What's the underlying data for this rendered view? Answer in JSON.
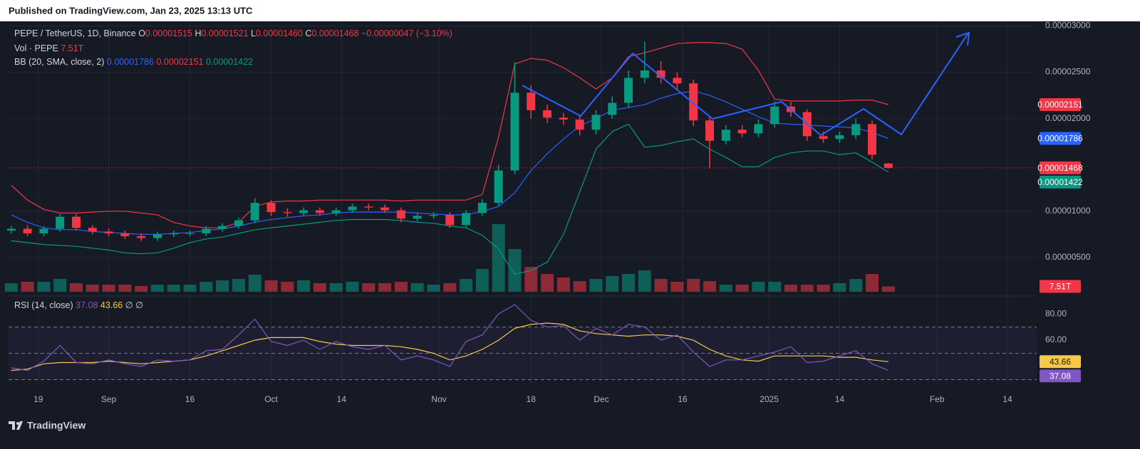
{
  "header": {
    "published": "Published on TradingView.com, Jan 23, 2025 13:13 UTC"
  },
  "legend": {
    "symbol": "PEPE / TetherUS, 1D, Binance",
    "o_label": "O",
    "o": "0.00001515",
    "h_label": "H",
    "h": "0.00001521",
    "l_label": "L",
    "l": "0.00001460",
    "c_label": "C",
    "c": "0.00001468",
    "change": "−0.00000047 (−3.10%)",
    "vol_label": "Vol · PEPE",
    "vol": "7.51T",
    "bb_label": "BB (20, SMA, close, 2)",
    "bb_middle": "0.00001786",
    "bb_upper": "0.00002151",
    "bb_lower": "0.00001422",
    "rsi_label": "RSI (14, close)",
    "rsi": "37.08",
    "rsi_ma": "43.66",
    "rsi_extra1": "∅",
    "rsi_extra2": "∅"
  },
  "badges": [
    {
      "text": "0.00002151",
      "color": "#f23645"
    },
    {
      "text": "0.00001786",
      "color": "#2962ff"
    },
    {
      "text": "0.00001468",
      "color": "#f23645"
    },
    {
      "text": "0.00001422",
      "color": "#089981"
    },
    {
      "text": "7.51T",
      "color": "#f23645"
    },
    {
      "text": "43.66",
      "color": "#f7c948"
    },
    {
      "text": "37.08",
      "color": "#7e57c2"
    }
  ],
  "footer": {
    "brand": "TradingView"
  },
  "chart_data": [
    {
      "type": "candlestick",
      "x": [
        13,
        16,
        19,
        22,
        25,
        28,
        31,
        34,
        37,
        40,
        43,
        46,
        49,
        52,
        55,
        58,
        61,
        64,
        67,
        70,
        73,
        76,
        79,
        82,
        85,
        88,
        91,
        94,
        97,
        100,
        103,
        106,
        109,
        112,
        115,
        118,
        121,
        124,
        127,
        130,
        133,
        136,
        139,
        142,
        145,
        148,
        151,
        154,
        157,
        160,
        163,
        166,
        169,
        172,
        175
      ],
      "open": [
        7.9e-06,
        8.1e-06,
        7.6e-06,
        8.1e-06,
        9.4e-06,
        8.2e-06,
        7.8e-06,
        7.6e-06,
        7.3e-06,
        7.1e-06,
        7.5e-06,
        7.6e-06,
        7.6e-06,
        8.1e-06,
        8.4e-06,
        9e-06,
        1.09e-05,
        9.9e-06,
        9.8e-06,
        1.01e-05,
        9.8e-06,
        1.01e-05,
        1.05e-05,
        1.04e-05,
        1.01e-05,
        9.2e-06,
        9.5e-06,
        9.6e-06,
        8.5e-06,
        9.8e-06,
        1.09e-05,
        1.44e-05,
        2.28e-05,
        2.09e-05,
        2.01e-05,
        1.99e-05,
        1.88e-05,
        2.04e-05,
        2.17e-05,
        2.44e-05,
        2.52e-05,
        2.44e-05,
        2.38e-05,
        1.98e-05,
        1.76e-05,
        1.88e-05,
        1.84e-05,
        1.94e-05,
        2.13e-05,
        2.07e-05,
        1.81e-05,
        1.78e-05,
        1.82e-05,
        1.94e-05,
        1.515e-05
      ],
      "high": [
        8.4e-06,
        8.5e-06,
        8.4e-06,
        9.7e-06,
        9.7e-06,
        8.5e-06,
        8.1e-06,
        7.9e-06,
        7.6e-06,
        7.8e-06,
        7.9e-06,
        7.9e-06,
        8.4e-06,
        8.7e-06,
        9.3e-06,
        1.14e-05,
        1.12e-05,
        1.03e-05,
        1.04e-05,
        1.04e-05,
        1.04e-05,
        1.08e-05,
        1.08e-05,
        1.07e-05,
        1.04e-05,
        9.8e-06,
        9.9e-06,
        9.9e-06,
        1.01e-05,
        1.13e-05,
        1.5e-05,
        2.61e-05,
        2.36e-05,
        2.15e-05,
        2.06e-05,
        2.04e-05,
        2.09e-05,
        2.24e-05,
        2.52e-05,
        2.83e-05,
        2.62e-05,
        2.5e-05,
        2.42e-05,
        2.03e-05,
        1.93e-05,
        1.93e-05,
        1.99e-05,
        2.19e-05,
        2.18e-05,
        2.1e-05,
        1.86e-05,
        1.86e-05,
        2e-05,
        1.98e-05,
        1.521e-05
      ],
      "low": [
        7.6e-06,
        7.3e-06,
        7.3e-06,
        7.8e-06,
        7.9e-06,
        7.5e-06,
        7.3e-06,
        7e-06,
        6.8e-06,
        6.8e-06,
        7.2e-06,
        7.3e-06,
        7.3e-06,
        7.8e-06,
        8.1e-06,
        8.7e-06,
        9.5e-06,
        9.4e-06,
        9.5e-06,
        9.5e-06,
        9.5e-06,
        9.8e-06,
        1.01e-05,
        9.8e-06,
        8.8e-06,
        8.9e-06,
        9.2e-06,
        8.2e-06,
        8.2e-06,
        9.5e-06,
        1.06e-05,
        1.4e-05,
        2e-05,
        1.95e-05,
        1.93e-05,
        1.82e-05,
        1.83e-05,
        2e-05,
        2.12e-05,
        2.38e-05,
        2.38e-05,
        2.32e-05,
        1.92e-05,
        1.46e-05,
        1.72e-05,
        1.8e-05,
        1.8e-05,
        1.9e-05,
        2.02e-05,
        1.76e-05,
        1.74e-05,
        1.74e-05,
        1.78e-05,
        1.56e-05,
        1.46e-05
      ],
      "close": [
        8.1e-06,
        7.6e-06,
        8.1e-06,
        9.4e-06,
        8.2e-06,
        7.8e-06,
        7.6e-06,
        7.3e-06,
        7.1e-06,
        7.5e-06,
        7.6e-06,
        7.6e-06,
        8.1e-06,
        8.4e-06,
        9e-06,
        1.09e-05,
        9.9e-06,
        9.8e-06,
        1.01e-05,
        9.8e-06,
        1.01e-05,
        1.05e-05,
        1.04e-05,
        1.01e-05,
        9.2e-06,
        9.5e-06,
        9.6e-06,
        8.5e-06,
        9.8e-06,
        1.09e-05,
        1.44e-05,
        2.28e-05,
        2.09e-05,
        2.01e-05,
        1.99e-05,
        1.88e-05,
        2.04e-05,
        2.17e-05,
        2.44e-05,
        2.52e-05,
        2.44e-05,
        2.38e-05,
        1.98e-05,
        1.76e-05,
        1.88e-05,
        1.84e-05,
        1.94e-05,
        2.13e-05,
        2.07e-05,
        1.81e-05,
        1.78e-05,
        1.82e-05,
        1.94e-05,
        1.61e-05,
        1.468e-05
      ],
      "up_color": "#089981",
      "down_color": "#f23645",
      "bands": {
        "upper": {
          "color": "#f23645",
          "values": [
            1.28e-05,
            1.12e-05,
            1.02e-05,
            9.8e-06,
            9.8e-06,
            9.9e-06,
            1e-05,
            1e-05,
            9.8e-06,
            9.6e-06,
            8.8e-06,
            8.4e-06,
            8.2e-06,
            8.2e-06,
            8.8e-06,
            1.05e-05,
            1.1e-05,
            1.11e-05,
            1.11e-05,
            1.12e-05,
            1.12e-05,
            1.12e-05,
            1.12e-05,
            1.12e-05,
            1.11e-05,
            1.12e-05,
            1.12e-05,
            1.12e-05,
            1.12e-05,
            1.18e-05,
            1.8e-05,
            2.59e-05,
            2.65e-05,
            2.63e-05,
            2.55e-05,
            2.44e-05,
            2.32e-05,
            2.44e-05,
            2.67e-05,
            2.71e-05,
            2.76e-05,
            2.81e-05,
            2.82e-05,
            2.82e-05,
            2.81e-05,
            2.75e-05,
            2.52e-05,
            2.21e-05,
            2.19e-05,
            2.19e-05,
            2.19e-05,
            2.19e-05,
            2.2e-05,
            2.2e-05,
            2.151e-05
          ]
        },
        "middle": {
          "color": "#2962ff",
          "values": [
            9.6e-06,
            8.8e-06,
            8.2e-06,
            8e-06,
            8e-06,
            7.8e-06,
            7.7e-06,
            7.6e-06,
            7.5e-06,
            7.5e-06,
            7.6e-06,
            7.7e-06,
            7.9e-06,
            8.1e-06,
            8.4e-06,
            8.8e-06,
            9.1e-06,
            9.3e-06,
            9.5e-06,
            9.6e-06,
            9.8e-06,
            9.9e-06,
            9.9e-06,
            9.9e-06,
            9.9e-06,
            9.8e-06,
            9.7e-06,
            9.6e-06,
            9.6e-06,
            1e-05,
            1.05e-05,
            1.2e-05,
            1.44e-05,
            1.62e-05,
            1.78e-05,
            1.92e-05,
            2e-05,
            2.09e-05,
            2.12e-05,
            2.15e-05,
            2.22e-05,
            2.27e-05,
            2.3e-05,
            2.25e-05,
            2.18e-05,
            2.1e-05,
            2.02e-05,
            1.95e-05,
            1.94e-05,
            1.93e-05,
            1.92e-05,
            1.91e-05,
            1.9e-05,
            1.85e-05,
            1.786e-05
          ]
        },
        "lower": {
          "color": "#089981",
          "values": [
            6.8e-06,
            6.6e-06,
            6.4e-06,
            6.3e-06,
            6.2e-06,
            6e-06,
            5.8e-06,
            5.5e-06,
            5.4e-06,
            5.5e-06,
            6e-06,
            6.6e-06,
            7e-06,
            7.2e-06,
            7.6e-06,
            8e-06,
            8.2e-06,
            8.4e-06,
            8.6e-06,
            8.8e-06,
            9e-06,
            9.1e-06,
            9.1e-06,
            9.1e-06,
            9e-06,
            8.8e-06,
            8.7e-06,
            8.4e-06,
            8.2e-06,
            7.4e-06,
            5.9e-06,
            3.2e-06,
            3.6e-06,
            4.5e-06,
            7.5e-06,
            1.21e-05,
            1.67e-05,
            1.86e-05,
            1.94e-05,
            1.69e-05,
            1.71e-05,
            1.75e-05,
            1.78e-05,
            1.67e-05,
            1.58e-05,
            1.48e-05,
            1.48e-05,
            1.58e-05,
            1.63e-05,
            1.65e-05,
            1.65e-05,
            1.61e-05,
            1.63e-05,
            1.53e-05,
            1.422e-05
          ]
        }
      },
      "volume": {
        "values": [
          12,
          14,
          14,
          18,
          12,
          10,
          10,
          10,
          8,
          10,
          10,
          10,
          14,
          16,
          18,
          24,
          16,
          14,
          16,
          12,
          12,
          14,
          12,
          12,
          14,
          12,
          10,
          12,
          18,
          32,
          95,
          60,
          35,
          25,
          20,
          15,
          18,
          22,
          25,
          30,
          18,
          14,
          18,
          15,
          10,
          10,
          14,
          14,
          10,
          10,
          10,
          12,
          18,
          25,
          7.51
        ],
        "ylim": [
          0,
          380
        ],
        "up_color": "#089981",
        "down_color": "#f23645"
      },
      "xlim": [
        12.5,
        202.4
      ],
      "xticks": [
        {
          "value": 18,
          "label": "19"
        },
        {
          "value": 31,
          "label": "Sep"
        },
        {
          "value": 46,
          "label": "16"
        },
        {
          "value": 61,
          "label": "Oct"
        },
        {
          "value": 74,
          "label": "14"
        },
        {
          "value": 92,
          "label": "Nov"
        },
        {
          "value": 109,
          "label": "18"
        },
        {
          "value": 122,
          "label": "Dec"
        },
        {
          "value": 137,
          "label": "16"
        },
        {
          "value": 153,
          "label": "2025"
        },
        {
          "value": 166,
          "label": "14"
        },
        {
          "value": 184,
          "label": "Feb"
        },
        {
          "value": 197,
          "label": "14"
        }
      ],
      "ylim": [
        1.3e-06,
        3.05e-05
      ],
      "yticks": [
        {
          "value": 3e-05,
          "label": "0.00003000"
        },
        {
          "value": 2.5e-05,
          "label": "0.00002500"
        },
        {
          "value": 2e-05,
          "label": "0.00002000"
        },
        {
          "value": 1e-05,
          "label": "0.00001000"
        },
        {
          "value": 5e-06,
          "label": "0.00000500"
        }
      ],
      "grid": true
    },
    {
      "type": "line",
      "x": [
        13,
        16,
        19,
        22,
        25,
        28,
        31,
        34,
        37,
        40,
        43,
        46,
        49,
        52,
        55,
        58,
        61,
        64,
        67,
        70,
        73,
        76,
        79,
        82,
        85,
        88,
        91,
        94,
        97,
        100,
        103,
        106,
        109,
        112,
        115,
        118,
        121,
        124,
        127,
        130,
        133,
        136,
        139,
        142,
        145,
        148,
        151,
        154,
        157,
        160,
        163,
        166,
        169,
        172,
        175
      ],
      "series": [
        {
          "color": "#7e57c2",
          "values": [
            39,
            37,
            44,
            56,
            43,
            42,
            45,
            42,
            40,
            45,
            44,
            45,
            52,
            53,
            64,
            76,
            59,
            56,
            60,
            53,
            59,
            55,
            53,
            56,
            45,
            48,
            45,
            40,
            59,
            64,
            80,
            87,
            75,
            70,
            71,
            60,
            69,
            64,
            72,
            70,
            60,
            64,
            51,
            40,
            45,
            45,
            48,
            51,
            55,
            43,
            44,
            48,
            52,
            42,
            37.08
          ]
        },
        {
          "color": "#f7c948",
          "values": [
            37,
            38,
            42,
            43,
            43,
            43,
            44,
            43,
            42,
            43,
            44,
            45,
            48,
            52,
            56,
            60,
            62,
            62,
            62,
            59,
            57,
            56,
            56,
            56,
            55,
            53,
            50,
            45,
            48,
            53,
            60,
            69,
            72,
            73,
            72,
            67,
            65,
            64,
            63,
            64,
            64,
            63,
            60,
            53,
            48,
            45,
            44,
            48,
            48,
            48,
            48,
            47,
            47,
            45,
            43.66
          ]
        }
      ],
      "ylim": [
        26.5,
        91.4
      ],
      "yticks": [
        {
          "value": 80,
          "label": "80.00"
        },
        {
          "value": 60,
          "label": "60.00"
        }
      ],
      "levels": [
        70,
        50,
        30
      ]
    }
  ]
}
